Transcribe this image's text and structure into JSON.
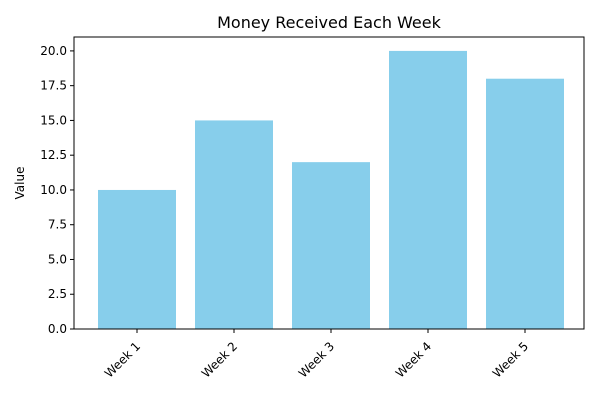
{
  "chart_data": {
    "type": "bar",
    "title": "Money Received Each Week",
    "xlabel": "",
    "ylabel": "Value",
    "categories": [
      "Week 1",
      "Week 2",
      "Week 3",
      "Week 4",
      "Week 5"
    ],
    "values": [
      10,
      15,
      12,
      20,
      18
    ],
    "ylim": [
      0,
      21
    ],
    "yticks": [
      "0.0",
      "2.5",
      "5.0",
      "7.5",
      "10.0",
      "12.5",
      "15.0",
      "17.5",
      "20.0"
    ],
    "bar_color": "#87CEEB",
    "grid": false,
    "legend": "none"
  }
}
